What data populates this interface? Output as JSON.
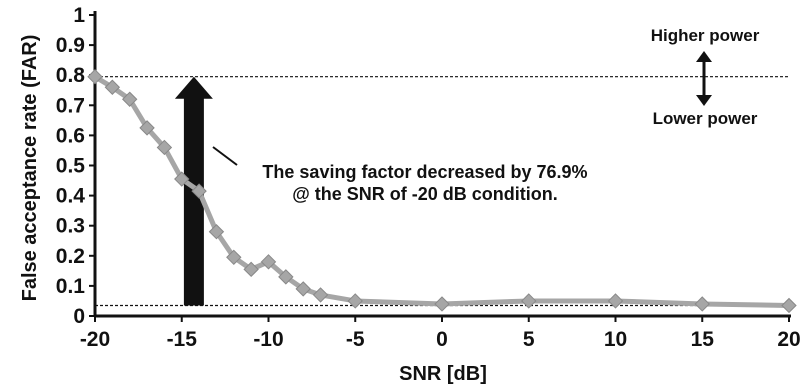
{
  "chart_data": {
    "type": "line",
    "xlabel": "SNR [dB]",
    "ylabel": "False acceptance rate (FAR)",
    "xlim": [
      -20,
      20
    ],
    "ylim": [
      0,
      1
    ],
    "xticks": [
      "-20",
      "-15",
      "-10",
      "-5",
      "0",
      "5",
      "10",
      "15",
      "20"
    ],
    "yticks": [
      "0",
      "0.1",
      "0.2",
      "0.3",
      "0.4",
      "0.5",
      "0.6",
      "0.7",
      "0.8",
      "0.9",
      "1"
    ],
    "grid": false,
    "series": [
      {
        "color": "#a6a6a6",
        "marker": "diamond",
        "x": [
          -20,
          -19,
          -18,
          -17,
          -16,
          -15,
          -14,
          -13,
          -12,
          -11,
          -10,
          -9,
          -8,
          -7,
          -5,
          0,
          5,
          10,
          15,
          20
        ],
        "y": [
          0.795,
          0.76,
          0.72,
          0.625,
          0.56,
          0.455,
          0.415,
          0.28,
          0.195,
          0.155,
          0.18,
          0.13,
          0.09,
          0.07,
          0.05,
          0.04,
          0.05,
          0.05,
          0.04,
          0.035
        ]
      }
    ],
    "reference_lines": [
      {
        "y": 0.795,
        "style": "dashed"
      },
      {
        "y": 0.035,
        "style": "dashed"
      }
    ],
    "annotations": {
      "saving_line1": "The saving factor decreased by 76.9%",
      "saving_line2": "@ the SNR of -20 dB condition.",
      "higher_power": "Higher power",
      "lower_power": "Lower power"
    },
    "big_arrow": {
      "x": -14.3,
      "from_y": 0.035,
      "to_y": 0.795,
      "color": "#111111"
    }
  }
}
